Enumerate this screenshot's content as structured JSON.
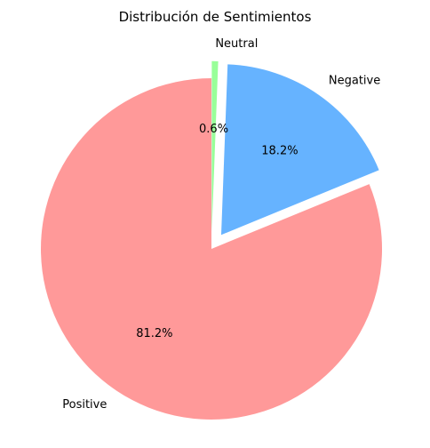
{
  "chart_data": {
    "type": "pie",
    "title": "Distribución de Sentimientos",
    "slices": [
      {
        "label": "Positive",
        "value": 81.2,
        "pct_label": "81.2%",
        "color": "#ff9999",
        "exploded": false
      },
      {
        "label": "Negative",
        "value": 18.2,
        "pct_label": "18.2%",
        "color": "#66b3ff",
        "exploded": true
      },
      {
        "label": "Neutral",
        "value": 0.6,
        "pct_label": "0.6%",
        "color": "#99ff99",
        "exploded": true
      }
    ],
    "start_angle_deg": 90,
    "direction": "counterclockwise",
    "legend": "none"
  }
}
